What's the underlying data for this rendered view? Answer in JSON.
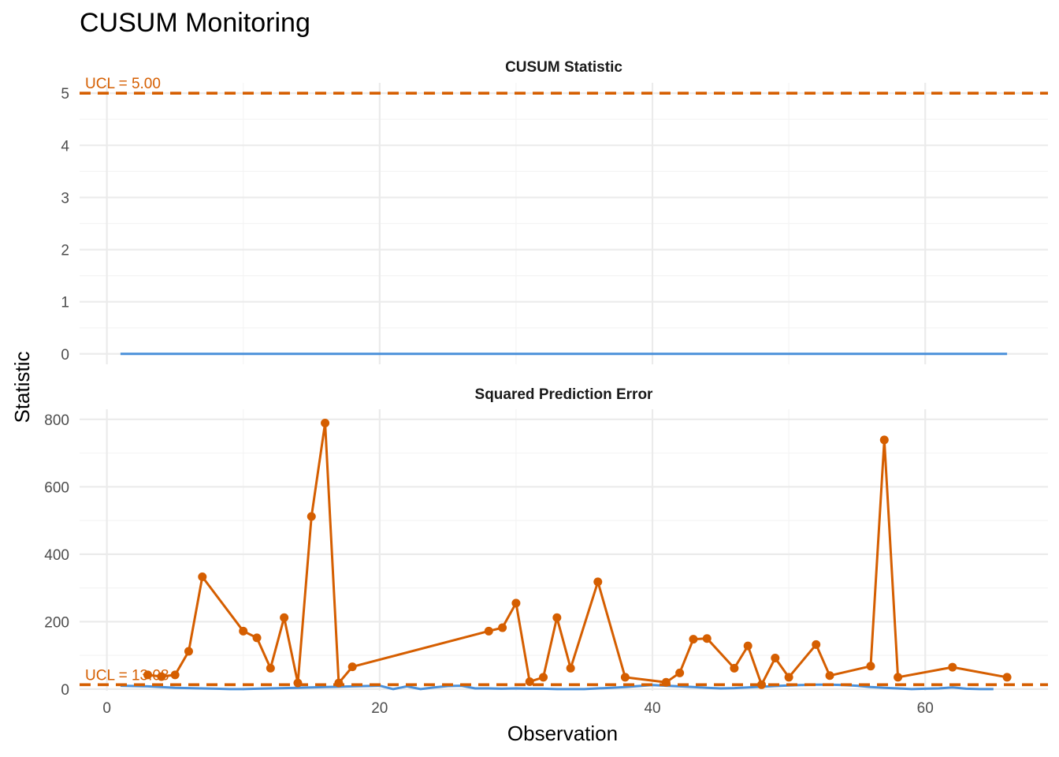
{
  "chart_data": {
    "type": "line",
    "title": "CUSUM Monitoring",
    "xlabel": "Observation",
    "ylabel": "Statistic",
    "grid": true,
    "legend": "none",
    "colors": {
      "flagged": "#D55E00",
      "baseline": "#4A90D9",
      "grid_major": "#EBEBEB",
      "grid_minor": "#F4F4F4",
      "tick_text": "#4D4D4D"
    },
    "x_axis": {
      "range": [
        -2,
        69
      ],
      "ticks": [
        0,
        20,
        40,
        60
      ],
      "tick_labels": [
        "0",
        "20",
        "40",
        "60"
      ]
    },
    "panels": [
      {
        "title": "CUSUM Statistic",
        "ylim": [
          -0.2,
          5.2
        ],
        "y_ticks": [
          0,
          1,
          2,
          3,
          4,
          5
        ],
        "y_tick_labels": [
          "0",
          "1",
          "2",
          "3",
          "4",
          "5"
        ],
        "ucl": 5.0,
        "ucl_label": "UCL =  5.00",
        "series": [
          {
            "x": [
              1,
              66
            ],
            "y": [
              0,
              0
            ]
          }
        ],
        "points": []
      },
      {
        "title": "Squared Prediction Error",
        "ylim": [
          -5,
          830
        ],
        "y_ticks": [
          0,
          200,
          400,
          600,
          800
        ],
        "y_tick_labels": [
          "0",
          "200",
          "400",
          "600",
          "800"
        ],
        "ucl": 13.08,
        "ucl_label": "UCL = 13.08",
        "series": [
          {
            "x": [
              1,
              2,
              3,
              4,
              5,
              6,
              7,
              8,
              9,
              10,
              11,
              12,
              13,
              14,
              15,
              16,
              17,
              18,
              19,
              20,
              21,
              22,
              23,
              24,
              25,
              26,
              27,
              28,
              29,
              30,
              31,
              32,
              33,
              34,
              35,
              36,
              37,
              38,
              39,
              40,
              41,
              42,
              43,
              44,
              45,
              46,
              47,
              48,
              49,
              50,
              51,
              52,
              53,
              54,
              55,
              56,
              57,
              58,
              59,
              60,
              61,
              62,
              63,
              64,
              65
            ],
            "y": [
              10,
              9,
              8,
              6,
              4,
              3,
              2,
              1,
              0,
              0,
              1,
              2,
              3,
              4,
              5,
              6,
              7,
              8,
              9,
              10,
              0,
              8,
              0,
              5,
              9,
              10,
              2,
              2,
              1,
              2,
              1,
              1,
              0,
              0,
              0,
              2,
              4,
              6,
              9,
              12,
              10,
              8,
              6,
              4,
              2,
              3,
              5,
              7,
              9,
              11,
              12,
              13,
              13,
              12,
              10,
              6,
              4,
              2,
              0,
              1,
              2,
              5,
              1,
              0,
              0
            ]
          }
        ],
        "points": {
          "x": [
            3,
            4,
            5,
            6,
            7,
            10,
            11,
            12,
            13,
            14,
            15,
            16,
            17,
            18,
            28,
            29,
            30,
            31,
            32,
            33,
            34,
            36,
            38,
            41,
            42,
            43,
            44,
            46,
            47,
            48,
            49,
            50,
            52,
            53,
            56,
            57,
            58,
            62,
            66
          ],
          "y": [
            42,
            37,
            42,
            112,
            333,
            172,
            152,
            62,
            212,
            18,
            512,
            789,
            18,
            66,
            172,
            182,
            255,
            22,
            35,
            212,
            62,
            318,
            35,
            20,
            48,
            148,
            150,
            62,
            128,
            13,
            92,
            35,
            132,
            40,
            68,
            739,
            35,
            65,
            35
          ]
        }
      }
    ]
  }
}
